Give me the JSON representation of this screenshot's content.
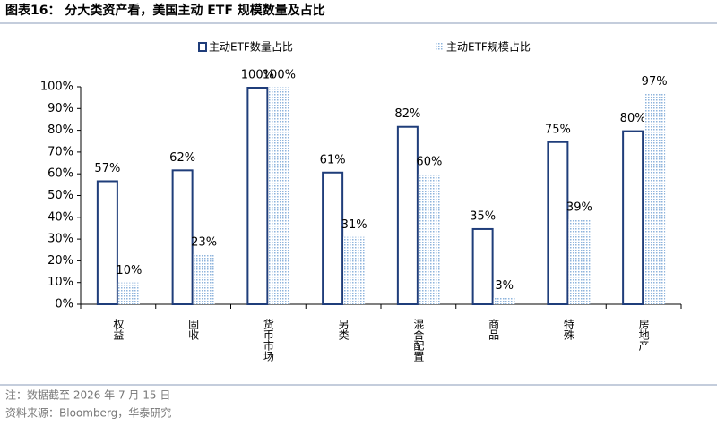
{
  "chart_data": {
    "type": "bar",
    "title": "图表16： 分大类资产看，美国主动 ETF 规模数量及占比",
    "notes": [
      "注：数据截至 2026 年 7 月 15 日",
      "资料来源：Bloomberg，华泰研究"
    ],
    "categories": [
      "权益",
      "固收",
      "货币市场",
      "另类",
      "混合配置",
      "商品",
      "特殊",
      "房地产"
    ],
    "series": [
      {
        "name": "主动ETF数量占比",
        "color": "#1f3d7a",
        "values": [
          57,
          62,
          100,
          61,
          82,
          35,
          75,
          80
        ],
        "value_labels": [
          "57%",
          "62%",
          "100%",
          "61%",
          "82%",
          "35%",
          "75%",
          "80%"
        ]
      },
      {
        "name": "主动ETF规模占比",
        "color": "#8fb4dc",
        "values": [
          10,
          23,
          100,
          31,
          60,
          3,
          39,
          97
        ],
        "value_labels": [
          "10%",
          "23%",
          "100%",
          "31%",
          "60%",
          "3%",
          "39%",
          "97%"
        ]
      }
    ],
    "ylim": [
      0,
      100
    ],
    "yticks": [
      {
        "value": 0,
        "label": "0%"
      },
      {
        "value": 10,
        "label": "10%"
      },
      {
        "value": 20,
        "label": "20%"
      },
      {
        "value": 30,
        "label": "30%"
      },
      {
        "value": 40,
        "label": "40%"
      },
      {
        "value": 50,
        "label": "50%"
      },
      {
        "value": 60,
        "label": "60%"
      },
      {
        "value": 70,
        "label": "70%"
      },
      {
        "value": 80,
        "label": "80%"
      },
      {
        "value": 90,
        "label": "90%"
      },
      {
        "value": 100,
        "label": "100%"
      }
    ]
  }
}
